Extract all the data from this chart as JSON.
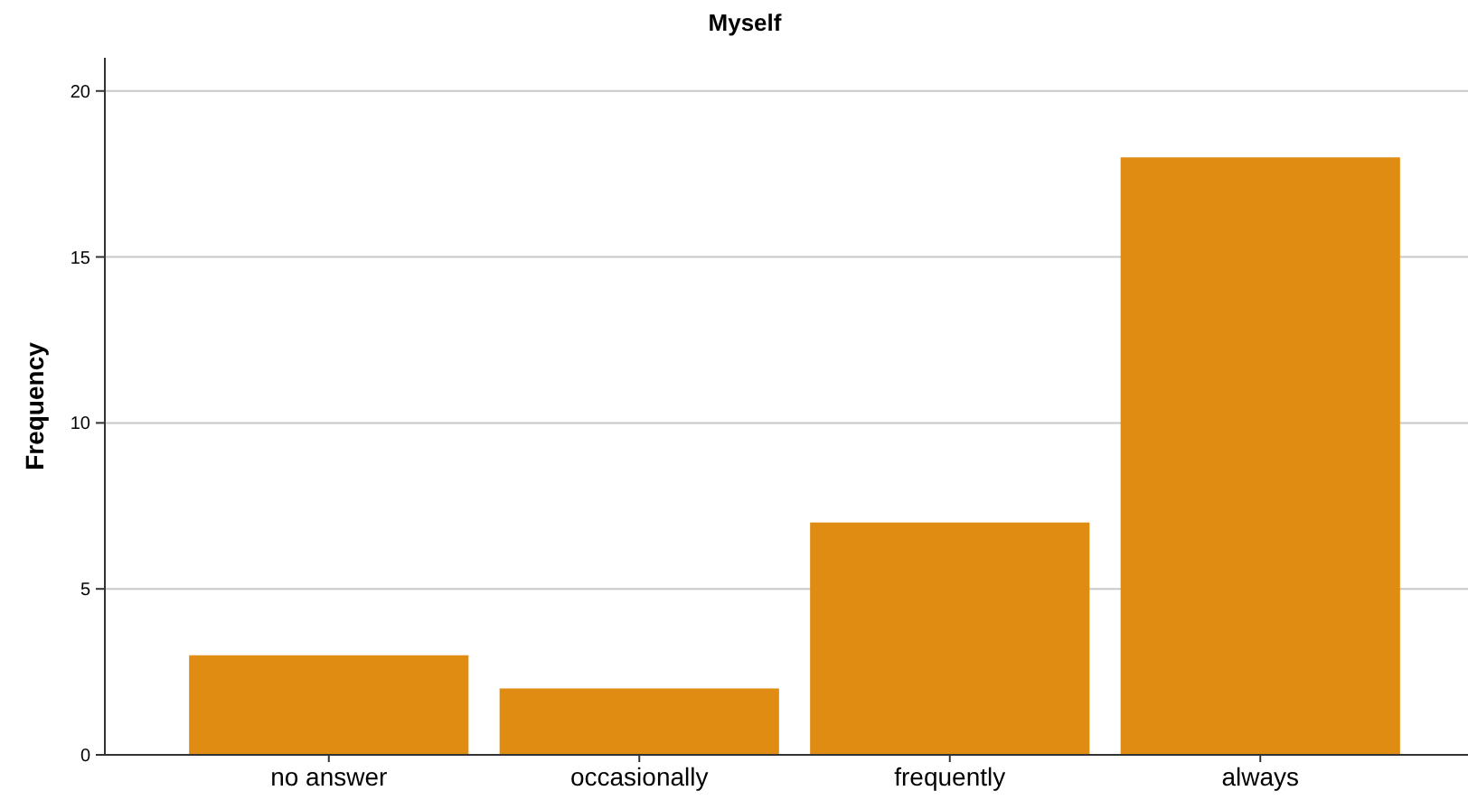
{
  "chart_data": {
    "type": "bar",
    "title": "Myself",
    "ylabel": "Frequency",
    "categories": [
      "no answer",
      "occasionally",
      "frequently",
      "always"
    ],
    "values": [
      3,
      2,
      7,
      18
    ],
    "color": "#e08c12",
    "ylim": [
      0,
      21
    ],
    "yticks": [
      0,
      5,
      10,
      15,
      20
    ],
    "grid": "y"
  }
}
